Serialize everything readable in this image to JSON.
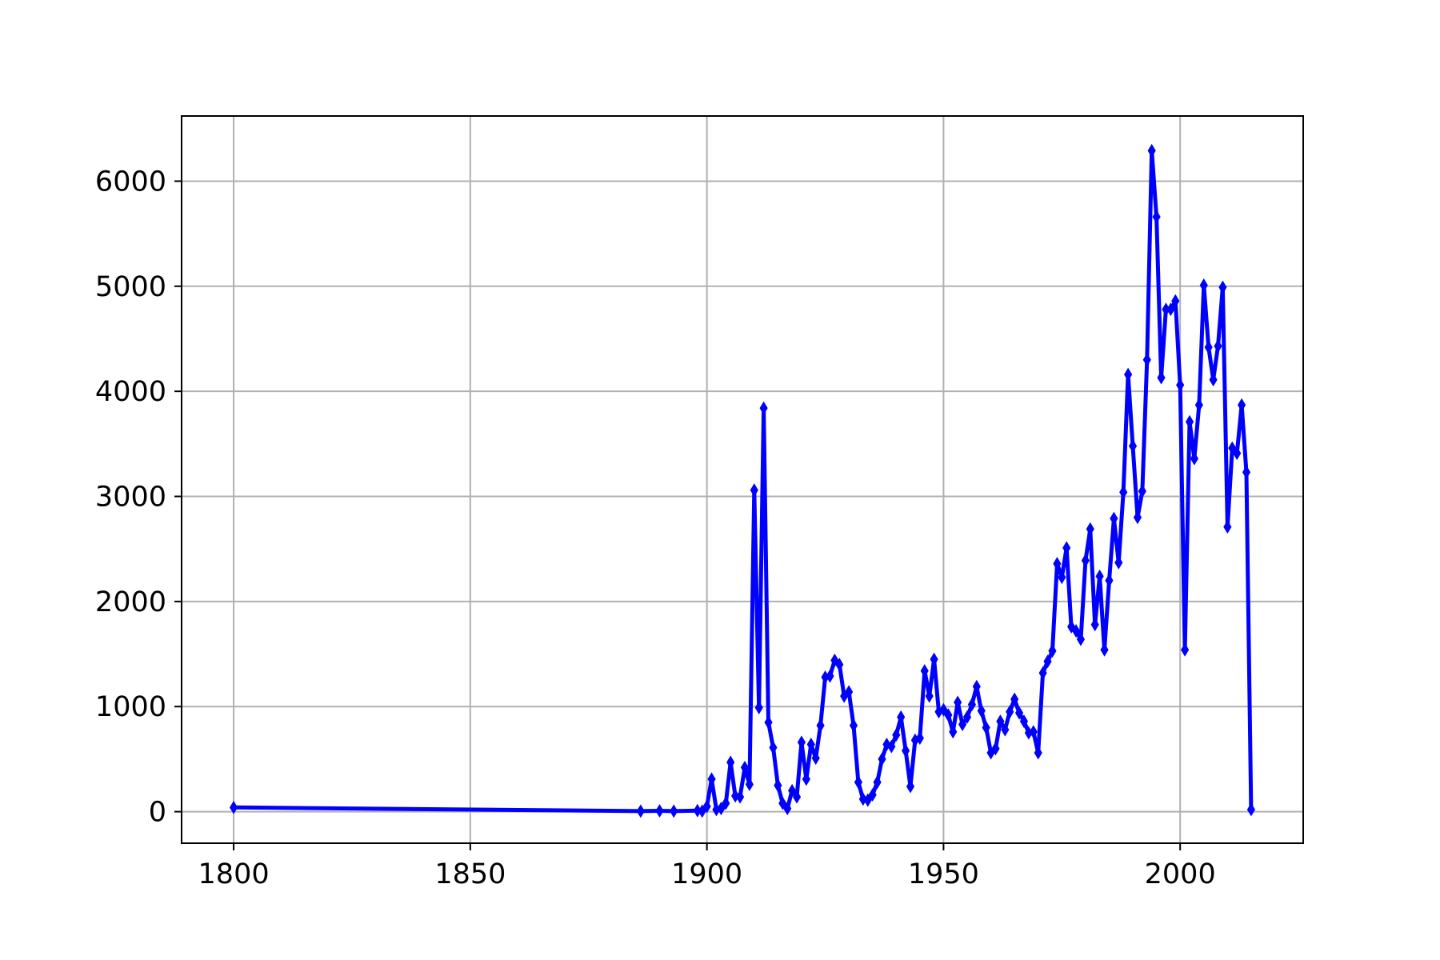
{
  "chart_data": {
    "type": "line",
    "title": "",
    "xlabel": "",
    "ylabel": "",
    "xlim": [
      1789,
      2026
    ],
    "ylim": [
      -300,
      6620
    ],
    "grid": true,
    "legend": "none",
    "x_ticks": [
      1800,
      1850,
      1900,
      1950,
      2000
    ],
    "y_ticks": [
      0,
      1000,
      2000,
      3000,
      4000,
      5000,
      6000
    ],
    "x_tick_labels": [
      "1800",
      "1850",
      "1900",
      "1950",
      "2000"
    ],
    "y_tick_labels": [
      "0",
      "1000",
      "2000",
      "3000",
      "4000",
      "5000",
      "6000"
    ],
    "colors": {
      "series": "#0000ff",
      "grid": "#b0b0b0",
      "axes": "#000000"
    },
    "marker": "thin-diamond",
    "series": [
      {
        "x": [
          1800,
          1886,
          1890,
          1893,
          1898,
          1899,
          1900,
          1901,
          1902,
          1903,
          1904,
          1905,
          1906,
          1907,
          1908,
          1909,
          1910,
          1911,
          1912,
          1913,
          1914,
          1915,
          1916,
          1917,
          1918,
          1919,
          1920,
          1921,
          1922,
          1923,
          1924,
          1925,
          1926,
          1927,
          1928,
          1929,
          1930,
          1931,
          1932,
          1933,
          1934,
          1935,
          1936,
          1937,
          1938,
          1939,
          1940,
          1941,
          1942,
          1943,
          1944,
          1945,
          1946,
          1947,
          1948,
          1949,
          1950,
          1951,
          1952,
          1953,
          1954,
          1955,
          1956,
          1957,
          1958,
          1959,
          1960,
          1961,
          1962,
          1963,
          1964,
          1965,
          1966,
          1967,
          1968,
          1969,
          1970,
          1971,
          1972,
          1973,
          1974,
          1975,
          1976,
          1977,
          1978,
          1979,
          1980,
          1981,
          1982,
          1983,
          1984,
          1985,
          1986,
          1987,
          1988,
          1989,
          1990,
          1991,
          1992,
          1993,
          1994,
          1995,
          1996,
          1997,
          1998,
          1999,
          2000,
          2001,
          2002,
          2003,
          2004,
          2005,
          2006,
          2007,
          2008,
          2009,
          2010,
          2011,
          2012,
          2013,
          2014,
          2015
        ],
        "values": [
          40,
          5,
          8,
          5,
          10,
          5,
          50,
          310,
          20,
          30,
          80,
          470,
          150,
          140,
          420,
          260,
          3060,
          990,
          3840,
          850,
          610,
          250,
          80,
          30,
          200,
          140,
          660,
          310,
          640,
          510,
          820,
          1280,
          1290,
          1440,
          1400,
          1100,
          1140,
          820,
          280,
          120,
          110,
          160,
          280,
          500,
          640,
          620,
          730,
          900,
          580,
          240,
          680,
          700,
          1340,
          1100,
          1450,
          950,
          970,
          920,
          760,
          1040,
          830,
          900,
          1020,
          1190,
          960,
          800,
          560,
          600,
          860,
          780,
          950,
          1070,
          940,
          860,
          750,
          760,
          560,
          1320,
          1430,
          1530,
          2360,
          2230,
          2510,
          1760,
          1720,
          1640,
          2390,
          2690,
          1780,
          2240,
          1540,
          2200,
          2790,
          2370,
          3040,
          4160,
          3480,
          2800,
          3050,
          4300,
          6290,
          5660,
          4130,
          4780,
          4780,
          4860,
          4060,
          1540,
          3710,
          3360,
          3870,
          5010,
          4420,
          4110,
          4430,
          4990,
          2710,
          3460,
          3410,
          3870,
          3230,
          20
        ]
      }
    ]
  }
}
